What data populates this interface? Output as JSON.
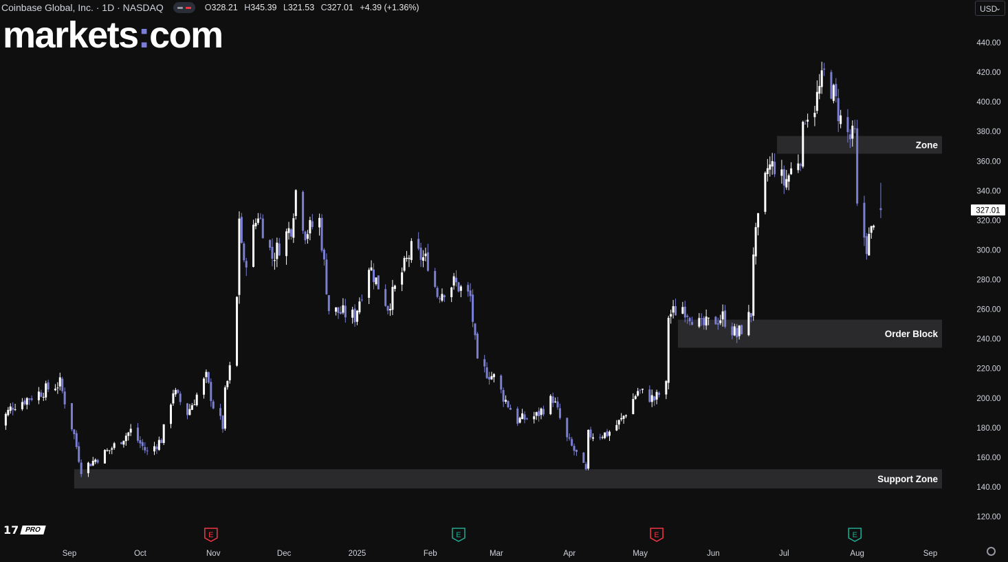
{
  "header": {
    "symbol": "Coinbase Global, Inc. · 1D · NASDAQ",
    "open_label": "O",
    "open": "328.21",
    "high_label": "H",
    "high": "345.39",
    "low_label": "L",
    "low": "321.53",
    "close_label": "C",
    "close": "327.01",
    "change": "+4.39 (+1.36%)"
  },
  "brand": {
    "left": "markets",
    "dot": ":",
    "right": "com"
  },
  "currency": {
    "value": "USD"
  },
  "footer": {
    "tv_mark": "17",
    "pro": "PRO"
  },
  "colors": {
    "background": "#0f0f10",
    "up": "#ffffff",
    "down": "#7b7fd4",
    "zone": "#2a2a2c",
    "text": "#d1d4dc"
  },
  "chart_data": {
    "type": "candlestick",
    "title": "Coinbase Global, Inc. · 1D · NASDAQ",
    "ylim": [
      110,
      450
    ],
    "y_ticks": [
      120,
      140,
      160,
      180,
      200,
      220,
      240,
      260,
      280,
      300,
      320,
      340,
      360,
      380,
      400,
      420,
      440
    ],
    "y_tick_labels": [
      "120.00",
      "140.00",
      "160.00",
      "180.00",
      "200.00",
      "220.00",
      "240.00",
      "260.00",
      "280.00",
      "300.00",
      "320.00",
      "340.00",
      "360.00",
      "380.00",
      "400.00",
      "420.00",
      "440.00"
    ],
    "x_ticks": [
      "2024-09-01",
      "2024-10-01",
      "2024-11-01",
      "2024-12-01",
      "2025-01-01",
      "2025-02-01",
      "2025-03-01",
      "2025-04-01",
      "2025-05-01",
      "2025-06-01",
      "2025-07-01",
      "2025-08-01",
      "2025-09-01"
    ],
    "x_tick_labels": [
      "Sep",
      "Oct",
      "Nov",
      "Dec",
      "2025",
      "Feb",
      "Mar",
      "Apr",
      "May",
      "Jun",
      "Jul",
      "Aug",
      "Sep"
    ],
    "xlim": [
      "2024-08-01",
      "2025-09-01"
    ],
    "last_price": 327.01,
    "last_price_label": "327.01",
    "zones": [
      {
        "label": "Zone",
        "from": 365,
        "to": 377,
        "start": "2025-06-28"
      },
      {
        "label": "Order Block",
        "from": 234,
        "to": 253,
        "start": "2025-05-17"
      },
      {
        "label": "Support Zone",
        "from": 139,
        "to": 152,
        "start": "2024-09-03"
      }
    ],
    "earnings": [
      {
        "date": "2024-10-31",
        "type": "E"
      },
      {
        "date": "2025-02-13",
        "type": "E"
      },
      {
        "date": "2025-05-08",
        "type": "E"
      },
      {
        "date": "2025-07-31",
        "type": "E"
      }
    ],
    "anchors": [
      [
        "2024-08-01",
        180
      ],
      [
        "2024-08-08",
        195
      ],
      [
        "2024-08-21",
        205
      ],
      [
        "2024-08-28",
        210
      ],
      [
        "2024-09-03",
        175
      ],
      [
        "2024-09-06",
        152
      ],
      [
        "2024-09-18",
        165
      ],
      [
        "2024-09-27",
        178
      ],
      [
        "2024-10-04",
        163
      ],
      [
        "2024-10-10",
        172
      ],
      [
        "2024-10-15",
        205
      ],
      [
        "2024-10-21",
        190
      ],
      [
        "2024-10-29",
        214
      ],
      [
        "2024-11-01",
        195
      ],
      [
        "2024-11-05",
        181
      ],
      [
        "2024-11-06",
        203
      ],
      [
        "2024-11-08",
        219
      ],
      [
        "2024-11-11",
        267
      ],
      [
        "2024-11-12",
        323
      ],
      [
        "2024-11-14",
        288
      ],
      [
        "2024-11-20",
        325
      ],
      [
        "2024-11-26",
        295
      ],
      [
        "2024-12-04",
        316
      ],
      [
        "2024-12-06",
        340
      ],
      [
        "2024-12-10",
        312
      ],
      [
        "2024-12-16",
        320
      ],
      [
        "2024-12-20",
        260
      ],
      [
        "2024-12-31",
        255
      ],
      [
        "2025-01-06",
        290
      ],
      [
        "2025-01-14",
        262
      ],
      [
        "2025-01-24",
        300
      ],
      [
        "2025-01-31",
        292
      ],
      [
        "2025-02-04",
        270
      ],
      [
        "2025-02-11",
        278
      ],
      [
        "2025-02-18",
        268
      ],
      [
        "2025-02-21",
        222
      ],
      [
        "2025-02-28",
        214
      ],
      [
        "2025-03-04",
        201
      ],
      [
        "2025-03-10",
        185
      ],
      [
        "2025-03-18",
        188
      ],
      [
        "2025-03-25",
        200
      ],
      [
        "2025-03-31",
        172
      ],
      [
        "2025-04-04",
        162
      ],
      [
        "2025-04-08",
        150
      ],
      [
        "2025-04-09",
        175
      ],
      [
        "2025-04-17",
        176
      ],
      [
        "2025-04-23",
        185
      ],
      [
        "2025-04-30",
        205
      ],
      [
        "2025-05-07",
        199
      ],
      [
        "2025-05-12",
        208
      ],
      [
        "2025-05-13",
        256
      ],
      [
        "2025-05-19",
        262
      ],
      [
        "2025-05-27",
        248
      ],
      [
        "2025-06-05",
        255
      ],
      [
        "2025-06-11",
        242
      ],
      [
        "2025-06-17",
        257
      ],
      [
        "2025-06-18",
        300
      ],
      [
        "2025-06-20",
        318
      ],
      [
        "2025-06-24",
        355
      ],
      [
        "2025-06-27",
        357
      ],
      [
        "2025-07-01",
        345
      ],
      [
        "2025-07-08",
        365
      ],
      [
        "2025-07-10",
        392
      ],
      [
        "2025-07-14",
        398
      ],
      [
        "2025-07-18",
        418
      ],
      [
        "2025-07-21",
        410
      ],
      [
        "2025-07-25",
        388
      ],
      [
        "2025-07-29",
        375
      ],
      [
        "2025-07-31",
        377
      ],
      [
        "2025-08-01",
        327
      ],
      [
        "2025-08-05",
        303
      ],
      [
        "2025-08-07",
        312
      ],
      [
        "2025-08-08",
        322
      ],
      [
        "2025-08-11",
        327
      ]
    ],
    "last_candle": {
      "date": "2025-08-11",
      "open": 328.21,
      "high": 345.39,
      "low": 321.53,
      "close": 327.01
    }
  }
}
